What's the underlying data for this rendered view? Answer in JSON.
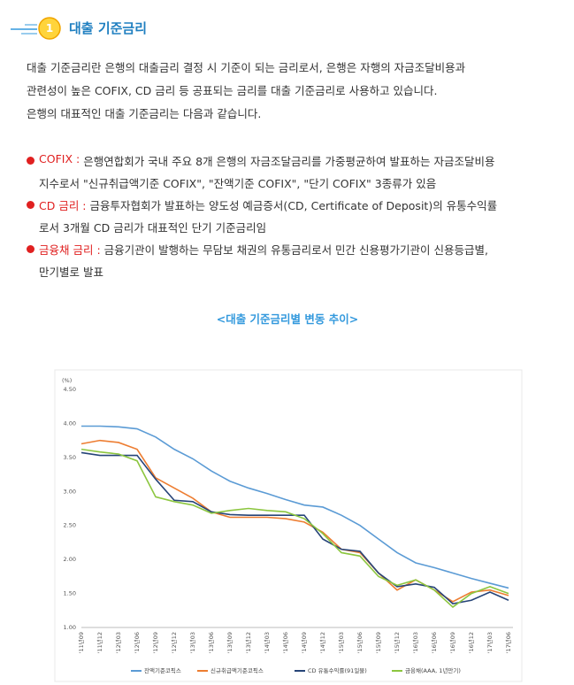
{
  "header": {
    "badge": "1",
    "title": "대출 기준금리"
  },
  "intro": [
    "대출 기준금리란 은행의 대출금리 결정 시 기준이 되는 금리로서, 은행은 자행의 자금조달비용과",
    "관련성이 높은 COFIX, CD 금리 등 공표되는 금리를 대출 기준금리로 사용하고 있습니다.",
    "은행의 대표적인 대출 기준금리는 다음과 같습니다."
  ],
  "bullets": [
    {
      "label": "COFIX :",
      "lines": [
        "은행연합회가 국내 주요 8개 은행의 자금조달금리를 가중평균하여 발표하는 자금조달비용",
        "지수로서 \"신규취급액기준 COFIX\", \"잔액기준 COFIX\", \"단기 COFIX\" 3종류가 있음"
      ]
    },
    {
      "label": "CD 금리 :",
      "lines": [
        "금융투자협회가 발표하는 양도성 예금증서(CD, Certificate of Deposit)의 유통수익률",
        "로서 3개월 CD 금리가 대표적인 단기 기준금리임"
      ]
    },
    {
      "label": "금융채 금리 :",
      "lines": [
        "금융기관이 발행하는 무담보 채권의 유통금리로서 민간 신용평가기관이 신용등급별,",
        "만기별로 발표"
      ]
    }
  ],
  "chart_data": {
    "type": "line",
    "title": "<대출 기준금리별 변동 추이>",
    "y_unit": "(%)",
    "categories": [
      "'11년09",
      "'11년12",
      "'12년03",
      "'12년06",
      "'12년09",
      "'12년12",
      "'13년03",
      "'13년06",
      "'13년09",
      "'13년12",
      "'14년03",
      "'14년06",
      "'14년09",
      "'14년12",
      "'15년03",
      "'15년06",
      "'15년09",
      "'15년12",
      "'16년03",
      "'16년06",
      "'16년09",
      "'16년12",
      "'17년03",
      "'17년06"
    ],
    "series": [
      {
        "name": "잔액기준코픽스",
        "color": "#5b9bd5",
        "values": [
          3.96,
          3.96,
          3.95,
          3.92,
          3.8,
          3.62,
          3.48,
          3.3,
          3.15,
          3.05,
          2.97,
          2.88,
          2.8,
          2.77,
          2.65,
          2.5,
          2.3,
          2.1,
          1.95,
          1.88,
          1.8,
          1.72,
          1.65,
          1.58
        ]
      },
      {
        "name": "신규취급액기준코픽스",
        "color": "#ed7d31",
        "values": [
          3.7,
          3.75,
          3.72,
          3.62,
          3.2,
          3.05,
          2.9,
          2.7,
          2.62,
          2.62,
          2.62,
          2.6,
          2.55,
          2.4,
          2.15,
          2.1,
          1.8,
          1.55,
          1.7,
          1.55,
          1.38,
          1.52,
          1.55,
          1.47
        ]
      },
      {
        "name": "CD 유통수익률(91일물)",
        "color": "#264478",
        "values": [
          3.57,
          3.53,
          3.53,
          3.53,
          3.18,
          2.87,
          2.85,
          2.7,
          2.66,
          2.65,
          2.65,
          2.65,
          2.65,
          2.3,
          2.15,
          2.12,
          1.8,
          1.6,
          1.64,
          1.59,
          1.35,
          1.4,
          1.52,
          1.4
        ]
      },
      {
        "name": "금융채(AAA, 1년만기)",
        "color": "#8cc63f",
        "values": [
          3.62,
          3.58,
          3.55,
          3.45,
          2.92,
          2.85,
          2.8,
          2.68,
          2.72,
          2.75,
          2.72,
          2.7,
          2.6,
          2.38,
          2.1,
          2.05,
          1.75,
          1.62,
          1.7,
          1.55,
          1.3,
          1.5,
          1.6,
          1.5
        ]
      }
    ],
    "ylim": [
      1,
      4.5
    ],
    "yticks": [
      {
        "value": 1,
        "label": "1.00"
      },
      {
        "value": 1.5,
        "label": "1.50"
      },
      {
        "value": 2,
        "label": "2.00"
      },
      {
        "value": 2.5,
        "label": "2.50"
      },
      {
        "value": 3,
        "label": "3.00"
      },
      {
        "value": 3.5,
        "label": "3.50"
      },
      {
        "value": 4,
        "label": "4.00"
      },
      {
        "value": 4.5,
        "label": "4.50"
      }
    ]
  }
}
